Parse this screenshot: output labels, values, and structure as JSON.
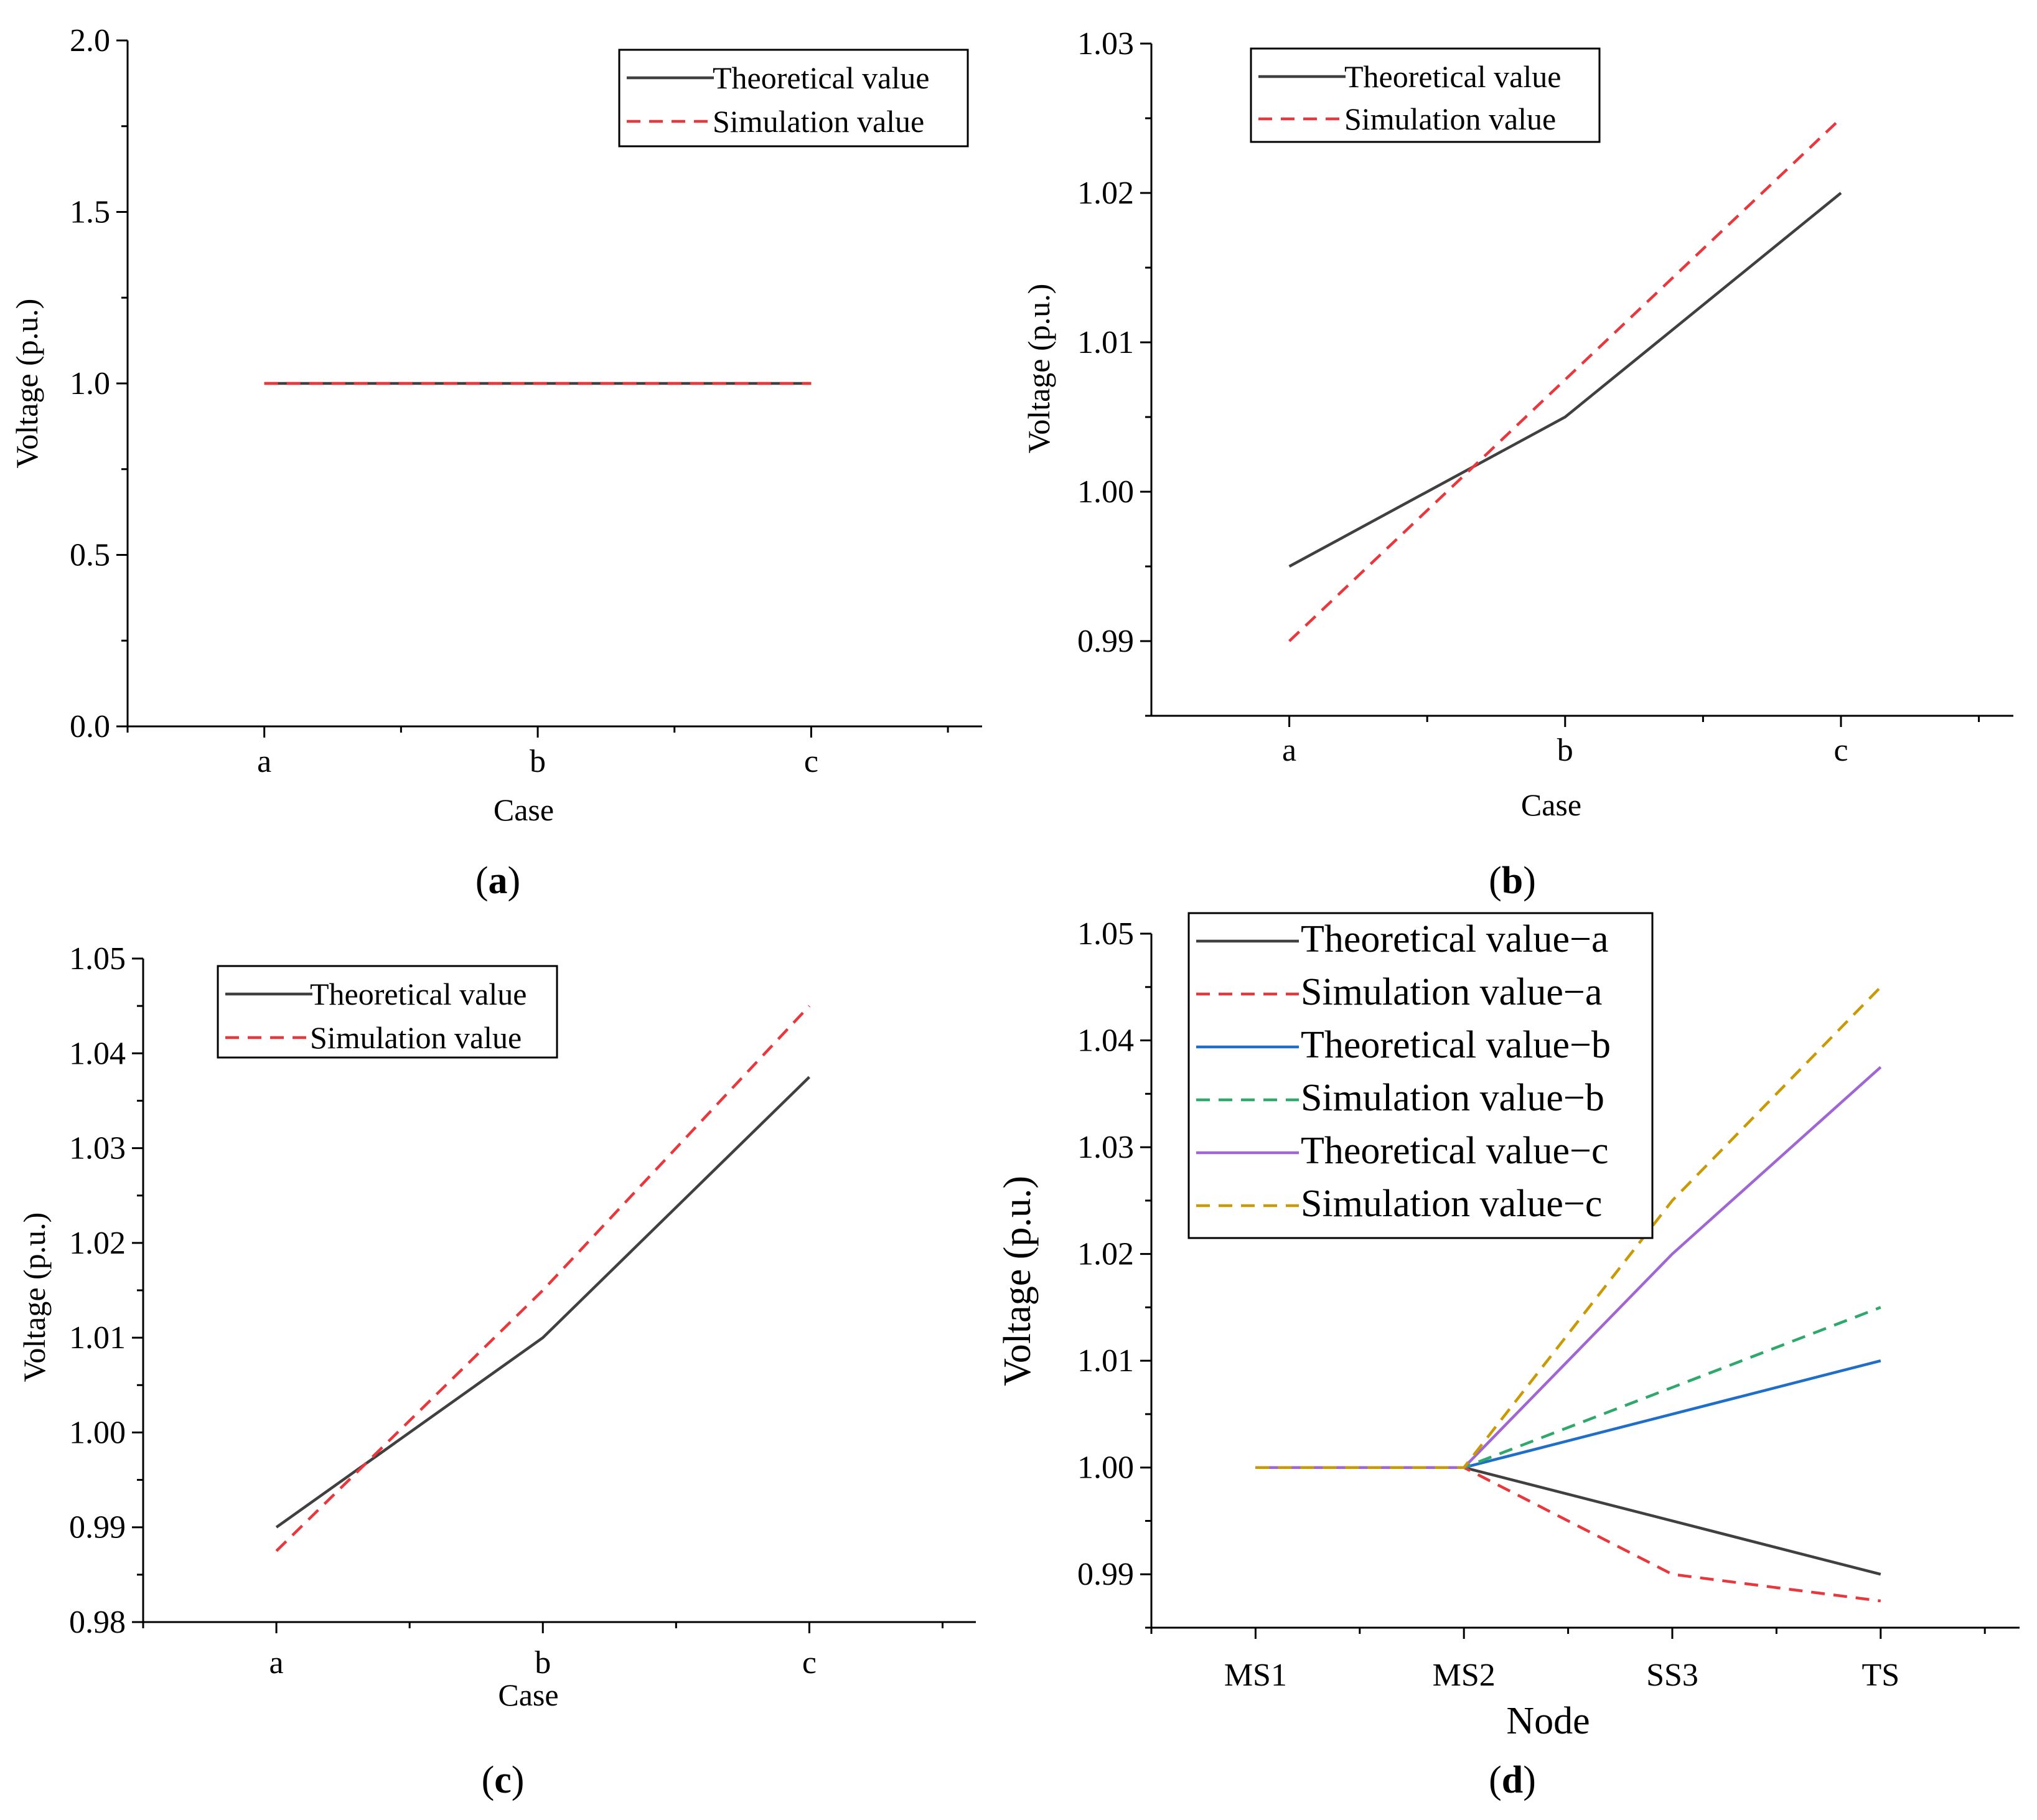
{
  "chart_data": [
    {
      "id": "a",
      "type": "line",
      "panel_label": "a",
      "xlabel": "Case",
      "ylabel": "Voltage (p.u.)",
      "categories": [
        "a",
        "b",
        "c"
      ],
      "ylim": [
        0.0,
        2.0
      ],
      "yticks": [
        0.0,
        0.5,
        1.0,
        1.5,
        2.0
      ],
      "ytick_labels": [
        "0.0",
        "0.5",
        "1.0",
        "1.5",
        "2.0"
      ],
      "legend_position": "top-right",
      "series": [
        {
          "name": "Theoretical value",
          "values": [
            1.0,
            1.0,
            1.0
          ],
          "color": "#404040",
          "dash": "solid"
        },
        {
          "name": "Simulation value",
          "values": [
            1.0,
            1.0,
            1.0
          ],
          "color": "#e8383d",
          "dash": "dashed"
        }
      ]
    },
    {
      "id": "b",
      "type": "line",
      "panel_label": "b",
      "xlabel": "Case",
      "ylabel": "Voltage (p.u.)",
      "categories": [
        "a",
        "b",
        "c"
      ],
      "ylim": [
        0.985,
        1.03
      ],
      "yticks": [
        0.99,
        1.0,
        1.01,
        1.02,
        1.03
      ],
      "ytick_labels": [
        "0.99",
        "1.00",
        "1.01",
        "1.02",
        "1.03"
      ],
      "legend_position": "top-left",
      "series": [
        {
          "name": "Theoretical value",
          "values": [
            0.995,
            1.005,
            1.02
          ],
          "color": "#404040",
          "dash": "solid"
        },
        {
          "name": "Simulation value",
          "values": [
            0.99,
            1.0075,
            1.025
          ],
          "color": "#e8383d",
          "dash": "dashed"
        }
      ]
    },
    {
      "id": "c",
      "type": "line",
      "panel_label": "c",
      "xlabel": "Case",
      "ylabel": "Voltage (p.u.)",
      "categories": [
        "a",
        "b",
        "c"
      ],
      "ylim": [
        0.98,
        1.05
      ],
      "yticks": [
        0.98,
        0.99,
        1.0,
        1.01,
        1.02,
        1.03,
        1.04,
        1.05
      ],
      "ytick_labels": [
        "0.98",
        "0.99",
        "1.00",
        "1.01",
        "1.02",
        "1.03",
        "1.04",
        "1.05"
      ],
      "legend_position": "top-left",
      "series": [
        {
          "name": "Theoretical value",
          "values": [
            0.99,
            1.01,
            1.0375
          ],
          "color": "#404040",
          "dash": "solid"
        },
        {
          "name": "Simulation value",
          "values": [
            0.9875,
            1.015,
            1.045
          ],
          "color": "#e8383d",
          "dash": "dashed"
        }
      ]
    },
    {
      "id": "d",
      "type": "line",
      "panel_label": "d",
      "xlabel": "Node",
      "ylabel": "Voltage (p.u.)",
      "categories": [
        "MS1",
        "MS2",
        "SS3",
        "TS"
      ],
      "ylim": [
        0.985,
        1.05
      ],
      "yticks": [
        0.99,
        1.0,
        1.01,
        1.02,
        1.03,
        1.04,
        1.05
      ],
      "ytick_labels": [
        "0.99",
        "1.00",
        "1.01",
        "1.02",
        "1.03",
        "1.04",
        "1.05"
      ],
      "legend_position": "top-left",
      "series": [
        {
          "name": "Theoretical value−a",
          "values": [
            1.0,
            1.0,
            0.995,
            0.99
          ],
          "color": "#404040",
          "dash": "solid"
        },
        {
          "name": "Simulation value−a",
          "values": [
            1.0,
            1.0,
            0.99,
            0.9875
          ],
          "color": "#e8383d",
          "dash": "dashed"
        },
        {
          "name": "Theoretical value−b",
          "values": [
            1.0,
            1.0,
            1.005,
            1.01
          ],
          "color": "#1f6fc8",
          "dash": "solid"
        },
        {
          "name": "Simulation value−b",
          "values": [
            1.0,
            1.0,
            1.0075,
            1.015
          ],
          "color": "#2ea86b",
          "dash": "dashed"
        },
        {
          "name": "Theoretical value−c",
          "values": [
            1.0,
            1.0,
            1.02,
            1.0375
          ],
          "color": "#a066d3",
          "dash": "solid"
        },
        {
          "name": "Simulation value−c",
          "values": [
            1.0,
            1.0,
            1.025,
            1.045
          ],
          "color": "#c99a06",
          "dash": "dashed"
        }
      ]
    }
  ]
}
